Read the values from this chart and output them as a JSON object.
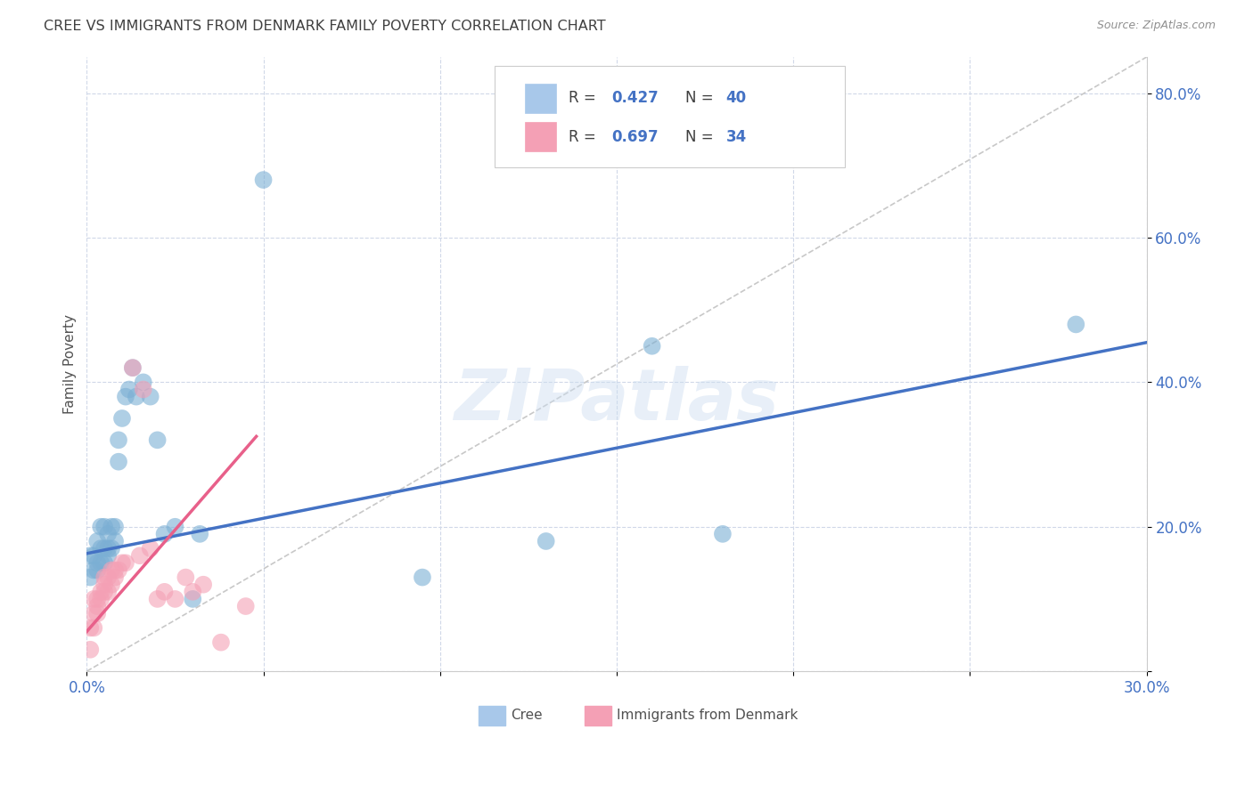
{
  "title": "CREE VS IMMIGRANTS FROM DENMARK FAMILY POVERTY CORRELATION CHART",
  "source": "Source: ZipAtlas.com",
  "xlim": [
    0,
    0.3
  ],
  "ylim": [
    0,
    0.85
  ],
  "watermark_text": "ZIPatlas",
  "cree_color": "#7bafd4",
  "denmark_color": "#f4a0b5",
  "cree_line_color": "#4472c4",
  "denmark_line_color": "#e8608a",
  "diagonal_color": "#c8c8c8",
  "grid_color": "#d0d8e8",
  "background_color": "#ffffff",
  "title_color": "#404040",
  "source_color": "#909090",
  "axis_label_color": "#505050",
  "tick_color": "#4472c4",
  "legend_box_color": "#a8c8ea",
  "legend_box_color2": "#f4a0b5",
  "legend_text_color": "#4472c4",
  "legend_label_color": "#505050",
  "cree_scatter_x": [
    0.001,
    0.001,
    0.002,
    0.002,
    0.003,
    0.003,
    0.003,
    0.004,
    0.004,
    0.004,
    0.005,
    0.005,
    0.005,
    0.006,
    0.006,
    0.006,
    0.007,
    0.007,
    0.008,
    0.008,
    0.009,
    0.009,
    0.01,
    0.011,
    0.012,
    0.013,
    0.014,
    0.016,
    0.018,
    0.02,
    0.022,
    0.025,
    0.03,
    0.032,
    0.05,
    0.095,
    0.13,
    0.16,
    0.18,
    0.28
  ],
  "cree_scatter_y": [
    0.13,
    0.16,
    0.14,
    0.16,
    0.14,
    0.15,
    0.18,
    0.15,
    0.17,
    0.2,
    0.15,
    0.17,
    0.2,
    0.16,
    0.17,
    0.19,
    0.17,
    0.2,
    0.18,
    0.2,
    0.29,
    0.32,
    0.35,
    0.38,
    0.39,
    0.42,
    0.38,
    0.4,
    0.38,
    0.32,
    0.19,
    0.2,
    0.1,
    0.19,
    0.68,
    0.13,
    0.18,
    0.45,
    0.19,
    0.48
  ],
  "denmark_scatter_x": [
    0.001,
    0.001,
    0.002,
    0.002,
    0.002,
    0.003,
    0.003,
    0.003,
    0.004,
    0.004,
    0.005,
    0.005,
    0.005,
    0.006,
    0.006,
    0.007,
    0.007,
    0.008,
    0.008,
    0.009,
    0.01,
    0.011,
    0.013,
    0.015,
    0.016,
    0.018,
    0.02,
    0.022,
    0.025,
    0.028,
    0.03,
    0.033,
    0.038,
    0.045
  ],
  "denmark_scatter_y": [
    0.03,
    0.06,
    0.06,
    0.08,
    0.1,
    0.08,
    0.09,
    0.1,
    0.1,
    0.11,
    0.11,
    0.12,
    0.13,
    0.11,
    0.13,
    0.12,
    0.14,
    0.13,
    0.14,
    0.14,
    0.15,
    0.15,
    0.42,
    0.16,
    0.39,
    0.17,
    0.1,
    0.11,
    0.1,
    0.13,
    0.11,
    0.12,
    0.04,
    0.09
  ],
  "cree_line_x0": 0.0,
  "cree_line_y0": 0.163,
  "cree_line_x1": 0.3,
  "cree_line_y1": 0.455,
  "denmark_line_x0": 0.0,
  "denmark_line_y0": 0.055,
  "denmark_line_x1": 0.048,
  "denmark_line_y1": 0.325
}
